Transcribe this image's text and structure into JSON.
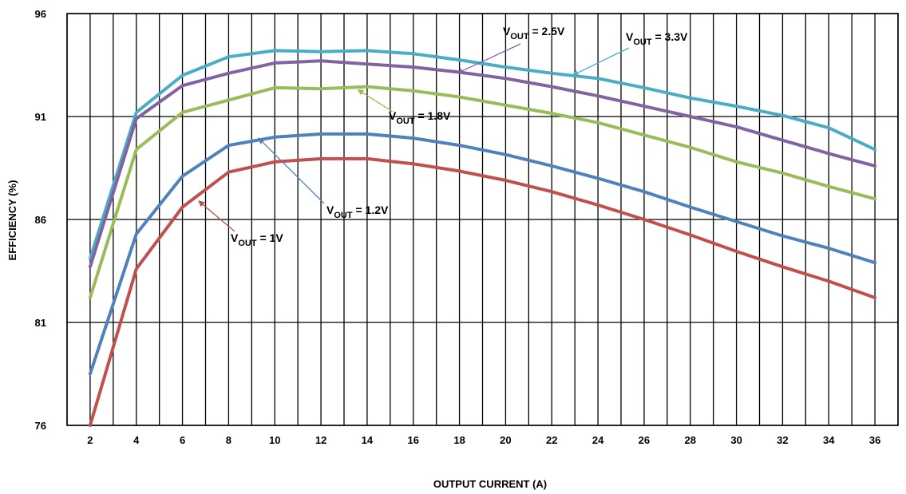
{
  "chart_data": {
    "type": "line",
    "title": "",
    "xlabel": "OUTPUT CURRENT (A)",
    "ylabel": "EFFICIENCY (%)",
    "xlim": [
      1,
      37
    ],
    "ylim": [
      76,
      96
    ],
    "x_ticks": [
      2,
      4,
      6,
      8,
      10,
      12,
      14,
      16,
      18,
      20,
      22,
      24,
      26,
      28,
      30,
      32,
      34,
      36
    ],
    "y_ticks": [
      76,
      81,
      86,
      91,
      96
    ],
    "grid": true,
    "x": [
      2,
      4,
      6,
      8,
      10,
      12,
      14,
      16,
      18,
      20,
      22,
      24,
      26,
      28,
      30,
      32,
      34,
      36
    ],
    "series": [
      {
        "color": "#4bacc6",
        "values": [
          84.1,
          91.2,
          93.0,
          93.9,
          94.2,
          94.15,
          94.2,
          94.05,
          93.75,
          93.4,
          93.1,
          92.85,
          92.4,
          91.9,
          91.5,
          91.05,
          90.45,
          89.4
        ]
      },
      {
        "color": "#8064a2",
        "values": [
          83.7,
          90.9,
          92.5,
          93.1,
          93.6,
          93.7,
          93.55,
          93.4,
          93.15,
          92.85,
          92.45,
          92.0,
          91.5,
          91.0,
          90.5,
          89.85,
          89.2,
          88.6
        ]
      },
      {
        "color": "#9bbb59",
        "values": [
          82.2,
          89.4,
          91.2,
          91.8,
          92.4,
          92.35,
          92.45,
          92.25,
          91.95,
          91.55,
          91.15,
          90.7,
          90.1,
          89.5,
          88.8,
          88.25,
          87.6,
          87.0
        ]
      },
      {
        "color": "#4f81bd",
        "values": [
          78.5,
          85.3,
          88.1,
          89.6,
          90.0,
          90.15,
          90.15,
          89.95,
          89.6,
          89.15,
          88.6,
          88.0,
          87.35,
          86.6,
          85.9,
          85.2,
          84.6,
          83.9
        ]
      },
      {
        "color": "#c0504d",
        "values": [
          76.0,
          83.6,
          86.6,
          88.3,
          88.8,
          88.95,
          88.95,
          88.7,
          88.35,
          87.9,
          87.35,
          86.7,
          86.0,
          85.25,
          84.45,
          83.7,
          83.0,
          82.2
        ]
      }
    ],
    "annotations": [
      {
        "main": "V",
        "sub": "OUT",
        "suffix": " = 2.5V",
        "arrow_color": "#8064a2",
        "arrow_to": [
          17.9,
          93.1
        ]
      },
      {
        "main": "V",
        "sub": "OUT",
        "suffix": " = 3.3V",
        "arrow_color": "#4bacc6",
        "arrow_to": [
          22.9,
          93.0
        ]
      },
      {
        "main": "V",
        "sub": "OUT",
        "suffix": " = 1.8V",
        "arrow_color": "#9bbb59",
        "arrow_to": [
          13.6,
          92.3
        ]
      },
      {
        "main": "V",
        "sub": "OUT",
        "suffix": " = 1.2V",
        "arrow_color": "#4f81bd",
        "arrow_to": [
          9.3,
          89.95
        ]
      },
      {
        "main": "V",
        "sub": "OUT",
        "suffix": " = 1V",
        "arrow_color": "#c0504d",
        "arrow_to": [
          6.7,
          86.9
        ]
      }
    ]
  }
}
